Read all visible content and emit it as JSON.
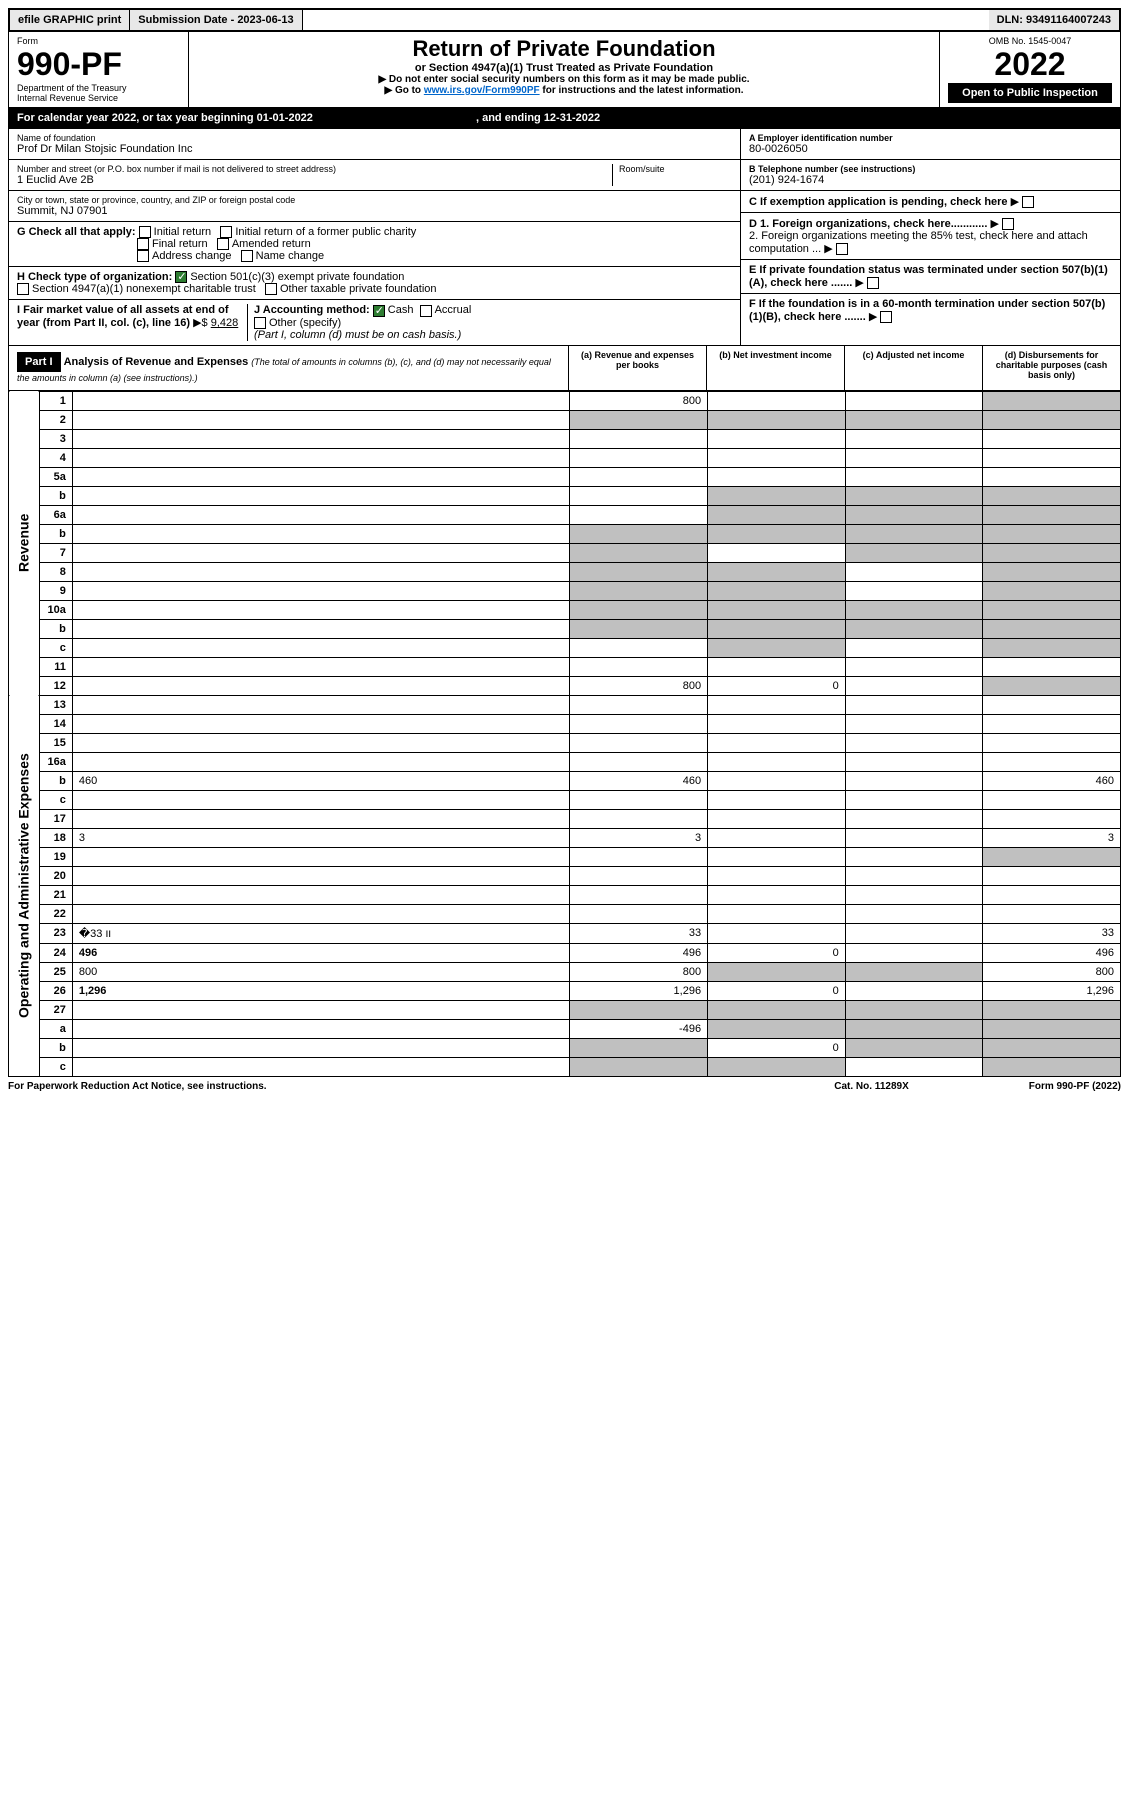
{
  "topbar": {
    "efile": "efile GRAPHIC print",
    "submission_label": "Submission Date - 2023-06-13",
    "dln": "DLN: 93491164007243"
  },
  "header": {
    "form_label": "Form",
    "form_no": "990-PF",
    "dept": "Department of the Treasury",
    "irs": "Internal Revenue Service",
    "title": "Return of Private Foundation",
    "subtitle": "or Section 4947(a)(1) Trust Treated as Private Foundation",
    "note1": "▶ Do not enter social security numbers on this form as it may be made public.",
    "note2_prefix": "▶ Go to ",
    "note2_link": "www.irs.gov/Form990PF",
    "note2_suffix": " for instructions and the latest information.",
    "omb": "OMB No. 1545-0047",
    "year": "2022",
    "inspect": "Open to Public Inspection"
  },
  "calendar": {
    "text": "For calendar year 2022, or tax year beginning 01-01-2022",
    "ending": ", and ending 12-31-2022"
  },
  "entity": {
    "name_label": "Name of foundation",
    "name": "Prof Dr Milan Stojsic Foundation Inc",
    "addr_label": "Number and street (or P.O. box number if mail is not delivered to street address)",
    "addr": "1 Euclid Ave 2B",
    "room_label": "Room/suite",
    "city_label": "City or town, state or province, country, and ZIP or foreign postal code",
    "city": "Summit, NJ  07901",
    "ein_label": "A Employer identification number",
    "ein": "80-0026050",
    "phone_label": "B Telephone number (see instructions)",
    "phone": "(201) 924-1674",
    "c_label": "C If exemption application is pending, check here",
    "d1": "D 1. Foreign organizations, check here............",
    "d2": "2. Foreign organizations meeting the 85% test, check here and attach computation ...",
    "e_label": "E If private foundation status was terminated under section 507(b)(1)(A), check here .......",
    "f_label": "F If the foundation is in a 60-month termination under section 507(b)(1)(B), check here .......",
    "g_label": "G Check all that apply:",
    "g_opts": [
      "Initial return",
      "Initial return of a former public charity",
      "Final return",
      "Amended return",
      "Address change",
      "Name change"
    ],
    "h_label": "H Check type of organization:",
    "h1": "Section 501(c)(3) exempt private foundation",
    "h2": "Section 4947(a)(1) nonexempt charitable trust",
    "h3": "Other taxable private foundation",
    "i_label": "I Fair market value of all assets at end of year (from Part II, col. (c), line 16)",
    "i_val": "9,428",
    "j_label": "J Accounting method:",
    "j_cash": "Cash",
    "j_accrual": "Accrual",
    "j_other": "Other (specify)",
    "j_note": "(Part I, column (d) must be on cash basis.)"
  },
  "part1": {
    "label": "Part I",
    "title": "Analysis of Revenue and Expenses",
    "subtitle": "(The total of amounts in columns (b), (c), and (d) may not necessarily equal the amounts in column (a) (see instructions).)",
    "col_a": "(a) Revenue and expenses per books",
    "col_b": "(b) Net investment income",
    "col_c": "(c) Adjusted net income",
    "col_d": "(d) Disbursements for charitable purposes (cash basis only)"
  },
  "sides": {
    "revenue": "Revenue",
    "expenses": "Operating and Administrative Expenses"
  },
  "rows": [
    {
      "n": "1",
      "d": "",
      "a": "800",
      "b": "",
      "c": "",
      "dg": true
    },
    {
      "n": "2",
      "d": "",
      "a": "",
      "b": "",
      "c": "",
      "allg": true
    },
    {
      "n": "3",
      "d": "",
      "a": "",
      "b": "",
      "c": ""
    },
    {
      "n": "4",
      "d": "",
      "a": "",
      "b": "",
      "c": ""
    },
    {
      "n": "5a",
      "d": "",
      "a": "",
      "b": "",
      "c": ""
    },
    {
      "n": "b",
      "d": "",
      "a": "",
      "b": "",
      "c": "",
      "bcg": true,
      "dg": true
    },
    {
      "n": "6a",
      "d": "",
      "a": "",
      "b": "",
      "c": "",
      "bcg": true,
      "dg": true
    },
    {
      "n": "b",
      "d": "",
      "a": "",
      "b": "",
      "c": "",
      "allg": true
    },
    {
      "n": "7",
      "d": "",
      "a": "",
      "b": "",
      "c": "",
      "ag": true,
      "cg": true,
      "dg": true
    },
    {
      "n": "8",
      "d": "",
      "a": "",
      "b": "",
      "c": "",
      "ag": true,
      "bg": true,
      "dg": true
    },
    {
      "n": "9",
      "d": "",
      "a": "",
      "b": "",
      "c": "",
      "ag": true,
      "bg": true,
      "dg": true
    },
    {
      "n": "10a",
      "d": "",
      "a": "",
      "b": "",
      "c": "",
      "allg": true
    },
    {
      "n": "b",
      "d": "",
      "a": "",
      "b": "",
      "c": "",
      "allg": true
    },
    {
      "n": "c",
      "d": "",
      "a": "",
      "b": "",
      "c": "",
      "bg": true,
      "dg": true
    },
    {
      "n": "11",
      "d": "",
      "a": "",
      "b": "",
      "c": ""
    },
    {
      "n": "12",
      "d": "",
      "a": "800",
      "b": "0",
      "c": "",
      "bold": true,
      "dg": true
    },
    {
      "n": "13",
      "d": "",
      "a": "",
      "b": "",
      "c": ""
    },
    {
      "n": "14",
      "d": "",
      "a": "",
      "b": "",
      "c": ""
    },
    {
      "n": "15",
      "d": "",
      "a": "",
      "b": "",
      "c": ""
    },
    {
      "n": "16a",
      "d": "",
      "a": "",
      "b": "",
      "c": ""
    },
    {
      "n": "b",
      "d": "460",
      "a": "460",
      "b": "",
      "c": ""
    },
    {
      "n": "c",
      "d": "",
      "a": "",
      "b": "",
      "c": ""
    },
    {
      "n": "17",
      "d": "",
      "a": "",
      "b": "",
      "c": ""
    },
    {
      "n": "18",
      "d": "3",
      "a": "3",
      "b": "",
      "c": ""
    },
    {
      "n": "19",
      "d": "",
      "a": "",
      "b": "",
      "c": "",
      "dg": true
    },
    {
      "n": "20",
      "d": "",
      "a": "",
      "b": "",
      "c": ""
    },
    {
      "n": "21",
      "d": "",
      "a": "",
      "b": "",
      "c": ""
    },
    {
      "n": "22",
      "d": "",
      "a": "",
      "b": "",
      "c": ""
    },
    {
      "n": "23",
      "d": "33",
      "a": "33",
      "b": "",
      "c": "",
      "icon": true
    },
    {
      "n": "24",
      "d": "496",
      "a": "496",
      "b": "0",
      "c": "",
      "bold": true
    },
    {
      "n": "25",
      "d": "800",
      "a": "800",
      "b": "",
      "c": "",
      "bg": true,
      "cg": true
    },
    {
      "n": "26",
      "d": "1,296",
      "a": "1,296",
      "b": "0",
      "c": "",
      "bold": true
    },
    {
      "n": "27",
      "d": "",
      "a": "",
      "b": "",
      "c": "",
      "allg": true
    },
    {
      "n": "a",
      "d": "",
      "a": "-496",
      "b": "",
      "c": "",
      "bold": true,
      "bg": true,
      "cg": true,
      "dg": true
    },
    {
      "n": "b",
      "d": "",
      "a": "",
      "b": "0",
      "c": "",
      "bold": true,
      "ag": true,
      "cg": true,
      "dg": true
    },
    {
      "n": "c",
      "d": "",
      "a": "",
      "b": "",
      "c": "",
      "bold": true,
      "ag": true,
      "bg": true,
      "dg": true
    }
  ],
  "footer": {
    "left": "For Paperwork Reduction Act Notice, see instructions.",
    "mid": "Cat. No. 11289X",
    "right": "Form 990-PF (2022)"
  },
  "colors": {
    "black": "#000000",
    "grey": "#c0c0c0",
    "link": "#0066cc",
    "check_green": "#2e7d32"
  }
}
